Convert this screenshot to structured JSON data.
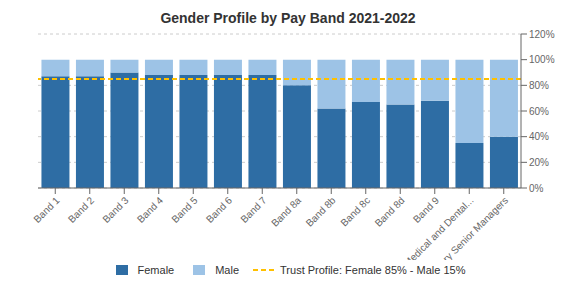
{
  "chart_data": {
    "type": "bar",
    "title": "Gender Profile by Pay Band 2021-2022",
    "categories": [
      "Band 1",
      "Band 2",
      "Band 3",
      "Band 4",
      "Band 5",
      "Band 6",
      "Band 7",
      "Band 8a",
      "Band 8b",
      "Band 8c",
      "Band 8d",
      "Band 9",
      "Medical and Dental...",
      "Very Senior Managers"
    ],
    "series": [
      {
        "name": "Female",
        "color": "#2E6DA4",
        "values": [
          87,
          87,
          90,
          88,
          88,
          88,
          88,
          80,
          62,
          67,
          65,
          68,
          35,
          40
        ]
      },
      {
        "name": "Male",
        "color": "#9DC3E6",
        "values": [
          13,
          13,
          10,
          12,
          12,
          12,
          12,
          20,
          38,
          33,
          35,
          32,
          65,
          60
        ]
      }
    ],
    "lines": [
      {
        "name": "Trust Profile: Female 85% - Male 15%",
        "value": 85,
        "color": "#FFC000",
        "line_style": "dashed"
      }
    ],
    "stacked": true,
    "ylim": [
      0,
      120
    ],
    "yticks": [
      {
        "value": 0,
        "label": "0%"
      },
      {
        "value": 20,
        "label": "20%"
      },
      {
        "value": 40,
        "label": "40%"
      },
      {
        "value": 60,
        "label": "60%"
      },
      {
        "value": 80,
        "label": "80%"
      },
      {
        "value": 100,
        "label": "100%"
      },
      {
        "value": 120,
        "label": "120%"
      }
    ],
    "grid": true,
    "legend": "bottom"
  }
}
